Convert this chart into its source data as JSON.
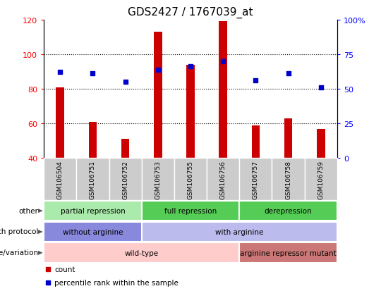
{
  "title": "GDS2427 / 1767039_at",
  "samples": [
    "GSM106504",
    "GSM106751",
    "GSM106752",
    "GSM106753",
    "GSM106755",
    "GSM106756",
    "GSM106757",
    "GSM106758",
    "GSM106759"
  ],
  "counts": [
    81,
    61,
    51,
    113,
    94,
    119,
    59,
    63,
    57
  ],
  "percentile_ranks_left_scale": [
    90,
    89,
    84,
    91,
    93,
    96,
    85,
    89,
    81
  ],
  "ylim_left": [
    40,
    120
  ],
  "yticks_left": [
    40,
    60,
    80,
    100,
    120
  ],
  "ytick_labels_left": [
    "40",
    "60",
    "80",
    "100",
    "120"
  ],
  "ytick_labels_right": [
    "0",
    "25",
    "50",
    "75",
    "100%"
  ],
  "bar_color": "#cc0000",
  "dot_color": "#0000cc",
  "annotation_rows": [
    {
      "label": "other",
      "segments": [
        {
          "text": "partial repression",
          "span": [
            0,
            3
          ],
          "color": "#aaeaaa"
        },
        {
          "text": "full repression",
          "span": [
            3,
            6
          ],
          "color": "#55cc55"
        },
        {
          "text": "derepression",
          "span": [
            6,
            9
          ],
          "color": "#55cc55"
        }
      ]
    },
    {
      "label": "growth protocol",
      "segments": [
        {
          "text": "without arginine",
          "span": [
            0,
            3
          ],
          "color": "#8888dd"
        },
        {
          "text": "with arginine",
          "span": [
            3,
            9
          ],
          "color": "#bbbbee"
        }
      ]
    },
    {
      "label": "genotype/variation",
      "segments": [
        {
          "text": "wild-type",
          "span": [
            0,
            6
          ],
          "color": "#ffcccc"
        },
        {
          "text": "arginine repressor mutant",
          "span": [
            6,
            9
          ],
          "color": "#cc7777"
        }
      ]
    }
  ],
  "legend_items": [
    {
      "label": "count",
      "color": "#cc0000"
    },
    {
      "label": "percentile rank within the sample",
      "color": "#0000cc"
    }
  ],
  "bg_color": "#ffffff",
  "sample_area_color": "#cccccc",
  "bar_width": 0.25,
  "dot_size": 25
}
